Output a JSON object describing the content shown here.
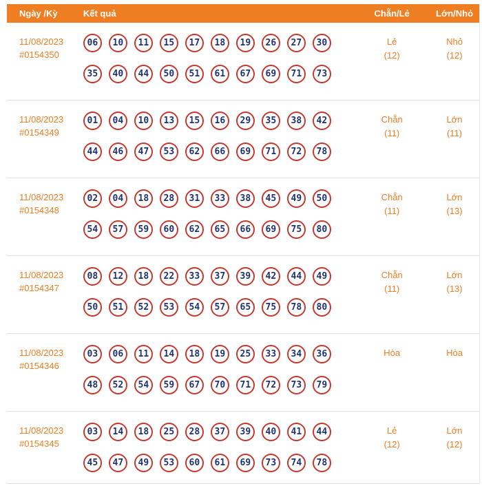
{
  "header": {
    "col_date": "Ngày /Kỳ",
    "col_result": "Kết quả",
    "col_even_odd": "Chẵn/Lẻ",
    "col_big_small": "Lớn/Nhỏ"
  },
  "colors": {
    "header_bg": "#EF7D22",
    "orange_text": "#EF7D22",
    "circle_border": "#C5382E",
    "number_text": "#1F3170",
    "divider": "#E0E0E0"
  },
  "rows": [
    {
      "date": "11/08/2023",
      "draw_id": "#0154350",
      "numbers_line1": [
        "06",
        "10",
        "11",
        "15",
        "17",
        "18",
        "19",
        "26",
        "27",
        "30"
      ],
      "numbers_line2": [
        "35",
        "40",
        "44",
        "50",
        "51",
        "61",
        "67",
        "69",
        "71",
        "73"
      ],
      "even_odd": "Lẻ",
      "even_odd_count": "(12)",
      "big_small": "Nhỏ",
      "big_small_count": "(12)"
    },
    {
      "date": "11/08/2023",
      "draw_id": "#0154349",
      "numbers_line1": [
        "01",
        "04",
        "10",
        "13",
        "15",
        "16",
        "29",
        "35",
        "38",
        "42"
      ],
      "numbers_line2": [
        "44",
        "46",
        "47",
        "53",
        "62",
        "66",
        "69",
        "71",
        "72",
        "78"
      ],
      "even_odd": "Chẵn",
      "even_odd_count": "(11)",
      "big_small": "Lớn",
      "big_small_count": "(11)"
    },
    {
      "date": "11/08/2023",
      "draw_id": "#0154348",
      "numbers_line1": [
        "02",
        "04",
        "18",
        "28",
        "31",
        "33",
        "38",
        "45",
        "49",
        "50"
      ],
      "numbers_line2": [
        "54",
        "57",
        "59",
        "60",
        "62",
        "65",
        "66",
        "69",
        "75",
        "80"
      ],
      "even_odd": "Chẵn",
      "even_odd_count": "(11)",
      "big_small": "Lớn",
      "big_small_count": "(13)"
    },
    {
      "date": "11/08/2023",
      "draw_id": "#0154347",
      "numbers_line1": [
        "08",
        "12",
        "18",
        "22",
        "33",
        "37",
        "39",
        "42",
        "44",
        "49"
      ],
      "numbers_line2": [
        "50",
        "51",
        "52",
        "53",
        "54",
        "57",
        "65",
        "75",
        "78",
        "80"
      ],
      "even_odd": "Chẵn",
      "even_odd_count": "(11)",
      "big_small": "Lớn",
      "big_small_count": "(13)"
    },
    {
      "date": "11/08/2023",
      "draw_id": "#0154346",
      "numbers_line1": [
        "03",
        "06",
        "11",
        "14",
        "18",
        "19",
        "25",
        "33",
        "34",
        "36"
      ],
      "numbers_line2": [
        "48",
        "52",
        "54",
        "59",
        "67",
        "70",
        "71",
        "72",
        "73",
        "79"
      ],
      "even_odd": "Hòa",
      "even_odd_count": "",
      "big_small": "Hòa",
      "big_small_count": ""
    },
    {
      "date": "11/08/2023",
      "draw_id": "#0154345",
      "numbers_line1": [
        "03",
        "14",
        "18",
        "25",
        "28",
        "37",
        "39",
        "40",
        "41",
        "44"
      ],
      "numbers_line2": [
        "45",
        "47",
        "49",
        "53",
        "60",
        "61",
        "69",
        "73",
        "74",
        "78"
      ],
      "even_odd": "Lẻ",
      "even_odd_count": "(12)",
      "big_small": "Lớn",
      "big_small_count": "(12)"
    }
  ]
}
